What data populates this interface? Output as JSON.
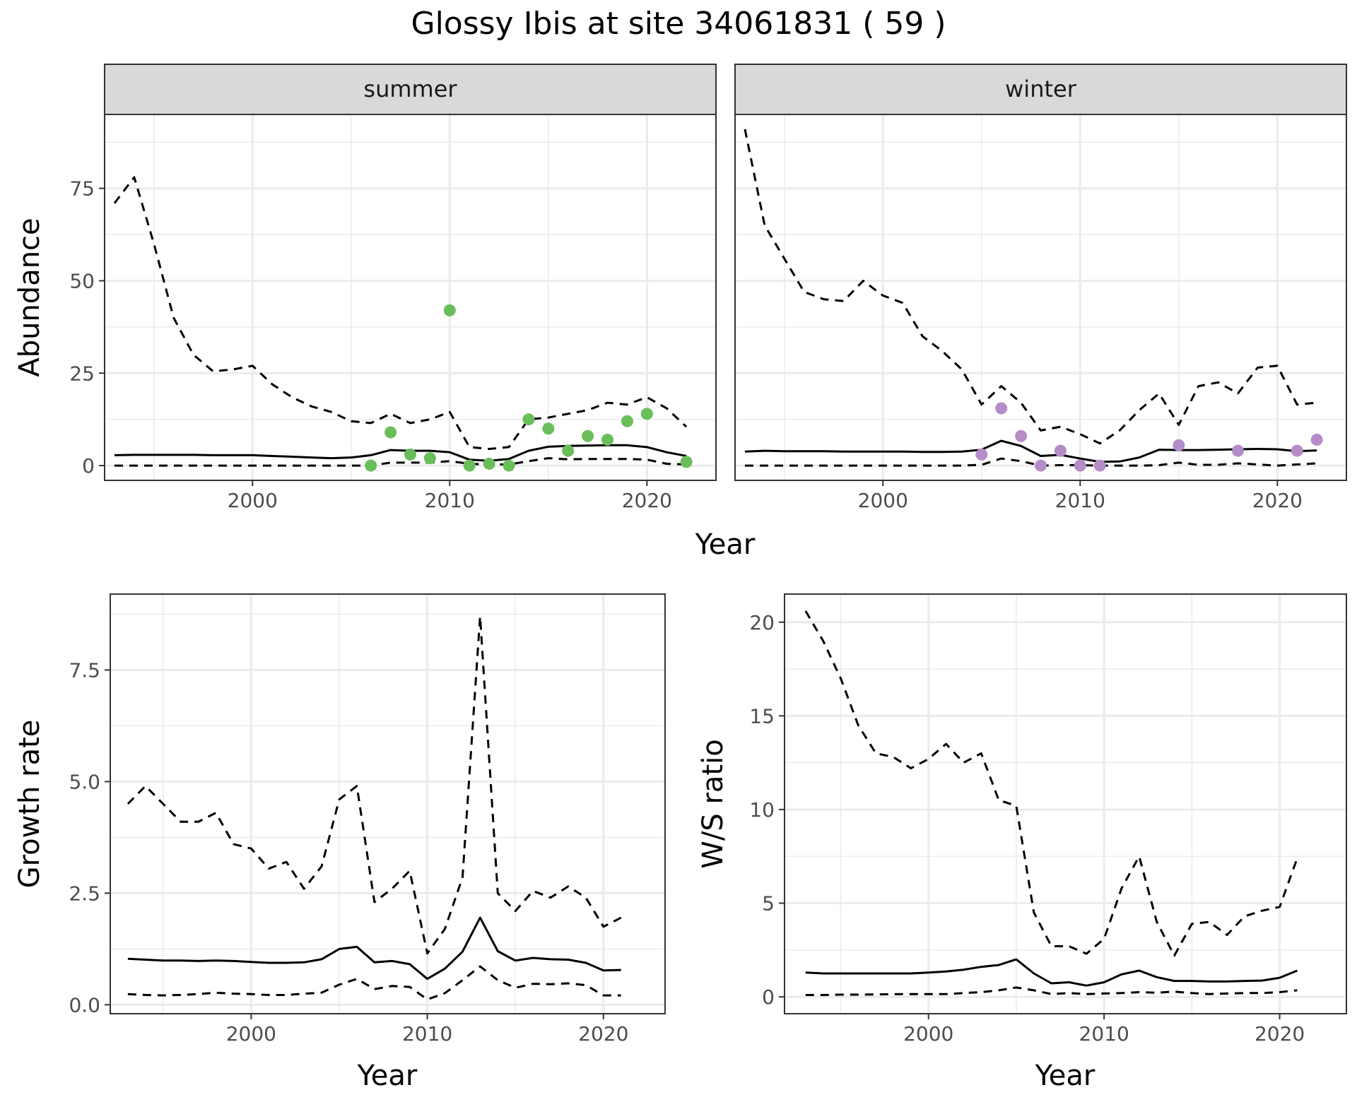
{
  "figure": {
    "title": "Glossy Ibis at site 34061831 ( 59 )"
  },
  "colors": {
    "summer_points": "#6ABE5A",
    "winter_points": "#B48CC8",
    "lines": "#000000",
    "strip_fill": "#D9D9D9",
    "grid": "#EBEBEB"
  },
  "abundance": {
    "ylabel": "Abundance",
    "xlabel": "Year",
    "xlim": [
      1992.5,
      2023.5
    ],
    "ylim": [
      -4,
      95
    ],
    "x_ticks": [
      2000,
      2010,
      2020
    ],
    "y_ticks": [
      0,
      25,
      50,
      75
    ],
    "grid": true,
    "facets": [
      {
        "label": "summer",
        "years": [
          1993,
          1994,
          1995,
          1996,
          1997,
          1998,
          1999,
          2000,
          2001,
          2002,
          2003,
          2004,
          2005,
          2006,
          2007,
          2008,
          2009,
          2010,
          2011,
          2012,
          2013,
          2014,
          2015,
          2016,
          2017,
          2018,
          2019,
          2020,
          2021,
          2022
        ],
        "mean": [
          2.8,
          2.9,
          2.9,
          2.9,
          2.9,
          2.8,
          2.8,
          2.8,
          2.6,
          2.4,
          2.2,
          2.0,
          2.2,
          2.8,
          4.2,
          4.0,
          4.0,
          3.6,
          1.6,
          1.3,
          1.8,
          4.0,
          5.1,
          5.3,
          5.4,
          5.5,
          5.5,
          5.0,
          3.6,
          2.6
        ],
        "lower": [
          0,
          0,
          0,
          0,
          0,
          0,
          0,
          0,
          0,
          0,
          0,
          0,
          0,
          0,
          0.8,
          0.8,
          0.8,
          1.2,
          0.5,
          0.3,
          0.3,
          1.2,
          2.0,
          1.7,
          1.8,
          1.8,
          1.8,
          1.6,
          0.5,
          0.3
        ],
        "upper": [
          71,
          78,
          60,
          40,
          30,
          25.5,
          26,
          27,
          22,
          18.5,
          16,
          14.5,
          12,
          11.5,
          14,
          11.5,
          12.5,
          14.5,
          5,
          4.5,
          5,
          12.5,
          13,
          14,
          15,
          17,
          16.5,
          18.5,
          15.5,
          10.5
        ],
        "observed": {
          "years": [
            2006,
            2007,
            2008,
            2009,
            2010,
            2011,
            2012,
            2013,
            2014,
            2015,
            2016,
            2017,
            2018,
            2019,
            2020,
            2022
          ],
          "values": [
            0,
            9,
            3,
            2,
            42,
            0,
            0.5,
            0,
            12.5,
            10,
            4,
            8,
            7,
            12,
            14,
            1
          ]
        }
      },
      {
        "label": "winter",
        "years": [
          1993,
          1994,
          1995,
          1996,
          1997,
          1998,
          1999,
          2000,
          2001,
          2002,
          2003,
          2004,
          2005,
          2006,
          2007,
          2008,
          2009,
          2010,
          2011,
          2012,
          2013,
          2014,
          2015,
          2016,
          2017,
          2018,
          2019,
          2020,
          2021,
          2022
        ],
        "mean": [
          3.8,
          4.0,
          3.9,
          3.9,
          3.9,
          3.8,
          3.8,
          3.8,
          3.8,
          3.7,
          3.7,
          3.8,
          4.3,
          6.7,
          5.3,
          2.6,
          2.9,
          1.9,
          1.0,
          1.1,
          2.2,
          4.3,
          4.2,
          4.2,
          4.3,
          4.4,
          4.5,
          4.4,
          3.9,
          4.1
        ],
        "lower": [
          0,
          0,
          0,
          0,
          0,
          0,
          0,
          0,
          0,
          0,
          0,
          0,
          0.2,
          1.9,
          1.2,
          0,
          0.1,
          0.1,
          0,
          0,
          0,
          0.1,
          0.8,
          0.2,
          0.2,
          0.6,
          0.3,
          0,
          0.3,
          0.6
        ],
        "upper": [
          91,
          65,
          56,
          47,
          45,
          44.5,
          50,
          46,
          44,
          35,
          31,
          26,
          16.5,
          21.5,
          17,
          9.5,
          10.5,
          8.5,
          6,
          9.5,
          15,
          19.5,
          11,
          21.5,
          22.5,
          19.5,
          26.5,
          27,
          16.5,
          17
        ],
        "observed": {
          "years": [
            2005,
            2006,
            2007,
            2008,
            2009,
            2010,
            2011,
            2015,
            2018,
            2021,
            2022
          ],
          "values": [
            3,
            15.5,
            8,
            0,
            4,
            0,
            0,
            5.5,
            4,
            4,
            7
          ]
        }
      }
    ]
  },
  "growth": {
    "ylabel": "Growth rate",
    "xlabel": "Year",
    "xlim": [
      1992,
      2023.5
    ],
    "ylim": [
      -0.2,
      9.2
    ],
    "x_ticks": [
      2000,
      2010,
      2020
    ],
    "y_ticks": [
      0.0,
      2.5,
      5.0,
      7.5
    ],
    "y_tick_labels": [
      "0.0",
      "2.5",
      "5.0",
      "7.5"
    ],
    "grid": true,
    "years": [
      1993,
      1994,
      1995,
      1996,
      1997,
      1998,
      1999,
      2000,
      2001,
      2002,
      2003,
      2004,
      2005,
      2006,
      2007,
      2008,
      2009,
      2010,
      2011,
      2012,
      2013,
      2014,
      2015,
      2016,
      2017,
      2018,
      2019,
      2020,
      2021
    ],
    "mean": [
      1.03,
      1.01,
      0.99,
      0.99,
      0.98,
      0.99,
      0.98,
      0.96,
      0.94,
      0.94,
      0.95,
      1.02,
      1.25,
      1.3,
      0.95,
      0.98,
      0.91,
      0.58,
      0.81,
      1.19,
      1.95,
      1.2,
      0.99,
      1.05,
      1.02,
      1.01,
      0.94,
      0.77,
      0.78
    ],
    "lower": [
      0.24,
      0.22,
      0.21,
      0.22,
      0.24,
      0.27,
      0.25,
      0.24,
      0.22,
      0.22,
      0.25,
      0.27,
      0.45,
      0.58,
      0.35,
      0.42,
      0.4,
      0.12,
      0.26,
      0.55,
      0.86,
      0.55,
      0.38,
      0.47,
      0.46,
      0.48,
      0.44,
      0.21,
      0.21
    ],
    "upper": [
      4.5,
      4.9,
      4.5,
      4.1,
      4.1,
      4.3,
      3.6,
      3.5,
      3.05,
      3.2,
      2.6,
      3.1,
      4.6,
      4.9,
      2.3,
      2.6,
      3.0,
      1.15,
      1.7,
      2.85,
      8.7,
      2.5,
      2.1,
      2.55,
      2.4,
      2.65,
      2.4,
      1.75,
      1.95
    ]
  },
  "ratio": {
    "ylabel": "W/S ratio",
    "xlabel": "Year",
    "xlim": [
      1991.8,
      2023.8
    ],
    "ylim": [
      -0.9,
      21.5
    ],
    "x_ticks": [
      2000,
      2010,
      2020
    ],
    "y_ticks": [
      0,
      5,
      10,
      15,
      20
    ],
    "grid": true,
    "years": [
      1993,
      1994,
      1995,
      1996,
      1997,
      1998,
      1999,
      2000,
      2001,
      2002,
      2003,
      2004,
      2005,
      2006,
      2007,
      2008,
      2009,
      2010,
      2011,
      2012,
      2013,
      2014,
      2015,
      2016,
      2017,
      2018,
      2019,
      2020,
      2021
    ],
    "mean": [
      1.3,
      1.25,
      1.25,
      1.25,
      1.25,
      1.25,
      1.25,
      1.3,
      1.35,
      1.45,
      1.6,
      1.7,
      2.0,
      1.25,
      0.72,
      0.78,
      0.6,
      0.78,
      1.2,
      1.4,
      1.05,
      0.85,
      0.85,
      0.82,
      0.82,
      0.85,
      0.87,
      1.02,
      1.4
    ],
    "lower": [
      0.1,
      0.1,
      0.12,
      0.12,
      0.13,
      0.14,
      0.15,
      0.15,
      0.15,
      0.2,
      0.25,
      0.35,
      0.5,
      0.35,
      0.15,
      0.2,
      0.15,
      0.18,
      0.2,
      0.25,
      0.22,
      0.28,
      0.2,
      0.15,
      0.18,
      0.2,
      0.2,
      0.25,
      0.35
    ],
    "upper": [
      20.6,
      19,
      17,
      14.5,
      13,
      12.8,
      12.2,
      12.7,
      13.5,
      12.5,
      13,
      10.5,
      10.2,
      4.5,
      2.7,
      2.7,
      2.3,
      3.1,
      5.8,
      7.5,
      4,
      2.2,
      3.9,
      4,
      3.3,
      4.3,
      4.6,
      4.8,
      7.4
    ]
  }
}
